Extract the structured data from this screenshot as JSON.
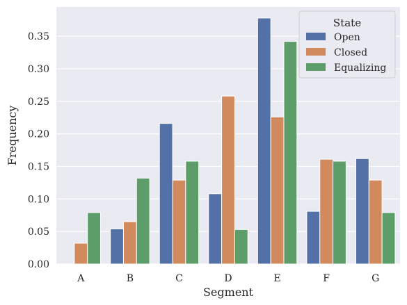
{
  "chart_data": {
    "type": "bar",
    "xlabel": "Segment",
    "ylabel": "Frequency",
    "ylim": [
      0,
      0.395
    ],
    "yticks": [
      "0.00",
      "0.05",
      "0.10",
      "0.15",
      "0.20",
      "0.25",
      "0.30",
      "0.35"
    ],
    "grid": true,
    "legend": {
      "title": "State",
      "placement": "top-right"
    },
    "categories": [
      "A",
      "B",
      "C",
      "D",
      "E",
      "F",
      "G"
    ],
    "series": [
      {
        "name": "Open",
        "color": "#5471a7",
        "values": [
          0,
          0.054,
          0.216,
          0.108,
          0.378,
          0.081,
          0.162
        ]
      },
      {
        "name": "Closed",
        "color": "#d08a5e",
        "values": [
          0.032,
          0.065,
          0.129,
          0.258,
          0.226,
          0.161,
          0.129
        ]
      },
      {
        "name": "Equalizing",
        "color": "#5c9d69",
        "values": [
          0.079,
          0.132,
          0.158,
          0.053,
          0.342,
          0.158,
          0.079
        ]
      }
    ]
  }
}
